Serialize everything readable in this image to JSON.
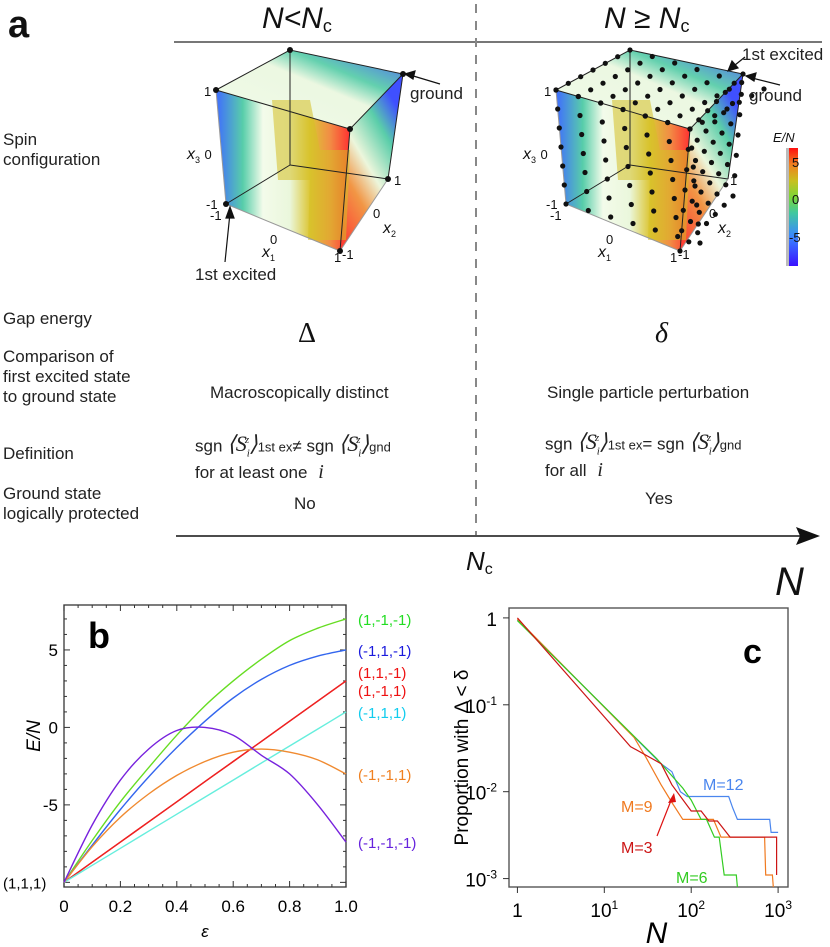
{
  "panel_a": {
    "letter": "a",
    "col_left_head": "N<N",
    "col_left_head_sub": "c",
    "col_right_head": "N ≥ N",
    "col_right_head_sub": "c",
    "rows": [
      {
        "label": "Spin\nconfiguration"
      },
      {
        "label": "Gap energy",
        "left": "Δ",
        "right": "δ"
      },
      {
        "label": "Comparison of\nfirst excited state\nto ground state",
        "left": "Macroscopically distinct",
        "right": "Single particle perturbation"
      },
      {
        "label": "Definition",
        "left_line1_pre": "sgn",
        "left_line1_sub1": "1st ex",
        "left_line1_op": "≠",
        "left_line1_sub2": "gnd",
        "left_line2": "for at least one",
        "right_line1_pre": "sgn",
        "right_line1_sub1": "1st ex",
        "right_line1_op": "=",
        "right_line1_sub2": "gnd",
        "right_line2": "for all",
        "index_symbol": "i"
      },
      {
        "label": "Ground state\nlogically protected",
        "left": "No",
        "right": "Yes"
      }
    ],
    "axis_label": "N",
    "axis_mark": "N",
    "axis_mark_sub": "c",
    "cube_left": {
      "annotations": [
        "ground",
        "1st excited"
      ],
      "axis_labels": {
        "x1": "x",
        "x2": "x",
        "x3": "x"
      },
      "axis_sub": {
        "x1": "1",
        "x2": "2",
        "x3": "3"
      },
      "ticks": [
        "1",
        "0",
        "-1",
        "-1",
        "0",
        "1",
        "-1",
        "0",
        "1"
      ]
    },
    "cube_right": {
      "annotations": [
        "1st excited",
        "ground"
      ],
      "axis_labels": {
        "x1": "x",
        "x2": "x",
        "x3": "x"
      },
      "axis_sub": {
        "x1": "1",
        "x2": "2",
        "x3": "3"
      },
      "ticks": [
        "1",
        "0",
        "-1",
        "-1",
        "0",
        "1",
        "-1",
        "0",
        "1"
      ]
    },
    "colorbar": {
      "title": "E/N",
      "ticks": [
        "5",
        "0",
        "-5"
      ],
      "range": [
        -9,
        7
      ],
      "colors": [
        "#0000ff",
        "#3a86ff",
        "#40c8a0",
        "#7ad63a",
        "#c8c020",
        "#f08020",
        "#ff1010"
      ]
    }
  },
  "chart_data": [
    {
      "panel": "b",
      "type": "line",
      "title": "",
      "xlabel": "ε",
      "ylabel": "E/N",
      "xlim": [
        0,
        1.0
      ],
      "ylim": [
        -10.3,
        7.9
      ],
      "xticks": [
        "0",
        "0.2",
        "0.4",
        "0.6",
        "0.8",
        "1.0"
      ],
      "xtick_values": [
        0,
        0.2,
        0.4,
        0.6,
        0.8,
        1.0
      ],
      "yticks": [
        "5",
        "0",
        "-5"
      ],
      "ytick_values": [
        5,
        0,
        -5
      ],
      "start_label": "(1,1,1)",
      "x": [
        0,
        0.1,
        0.2,
        0.3,
        0.4,
        0.5,
        0.6,
        0.7,
        0.8,
        0.9,
        1.0
      ],
      "series": [
        {
          "name": "(1,-1,-1)",
          "color": "#66dd22",
          "values": [
            -10,
            -7.3,
            -4.8,
            -2.6,
            -0.5,
            1.4,
            3.0,
            4.4,
            5.6,
            6.4,
            7.0
          ]
        },
        {
          "name": "(-1,1,-1)",
          "color": "#3366ee",
          "values": [
            -10,
            -7.6,
            -5.3,
            -3.2,
            -1.3,
            0.4,
            1.9,
            3.1,
            4.0,
            4.6,
            5.0
          ]
        },
        {
          "name": "(1,1,-1)",
          "color": "#ee2222",
          "values": [
            -10,
            -8.7,
            -7.4,
            -6.1,
            -4.8,
            -3.5,
            -2.2,
            -0.9,
            0.4,
            1.7,
            3.0
          ]
        },
        {
          "name": "(1,-1,1)",
          "color": "#ee2222",
          "values": [
            -10,
            -8.7,
            -7.4,
            -6.1,
            -4.8,
            -3.5,
            -2.2,
            -0.9,
            0.4,
            1.7,
            3.0
          ]
        },
        {
          "name": "(-1,1,1)",
          "color": "#66eedd",
          "values": [
            -10,
            -8.9,
            -7.8,
            -6.7,
            -5.6,
            -4.5,
            -3.4,
            -2.3,
            -1.2,
            -0.1,
            1.0
          ]
        },
        {
          "name": "(-1,-1,1)",
          "color": "#f08a30",
          "values": [
            -10,
            -7.7,
            -5.8,
            -4.3,
            -3.1,
            -2.2,
            -1.6,
            -1.4,
            -1.6,
            -2.1,
            -3.0
          ]
        },
        {
          "name": "(-1,-1,-1)",
          "color": "#7722dd",
          "values": [
            -10,
            -6.3,
            -3.4,
            -1.4,
            -0.2,
            0.0,
            -0.5,
            -1.8,
            -3.0,
            -5.0,
            -7.4
          ]
        }
      ],
      "legend_placement": "right",
      "legend_colors": [
        "#22dd22",
        "#1a1add",
        "#ee1111",
        "#ee1111",
        "#11ccee",
        "#f08020",
        "#6622dd"
      ]
    },
    {
      "panel": "c",
      "type": "line",
      "title": "",
      "xlabel": "N",
      "ylabel": "Proportion with Δ < δ",
      "xscale": "log",
      "yscale": "log",
      "xlim": [
        0.8,
        1300
      ],
      "ylim": [
        0.0008,
        1.3
      ],
      "xticks": [
        "1",
        "10",
        "10",
        "10"
      ],
      "xtick_exp": [
        "",
        "1",
        "2",
        "3"
      ],
      "xtick_values": [
        1,
        10,
        100,
        1000
      ],
      "yticks": [
        "1",
        "10",
        "10",
        "10"
      ],
      "ytick_exp": [
        "",
        "-1",
        "-2",
        "-3"
      ],
      "ytick_values": [
        1,
        0.1,
        0.01,
        0.001
      ],
      "series": [
        {
          "name": "M=12",
          "color": "#4a86ee",
          "points": [
            [
              1,
              0.95
            ],
            [
              20,
              0.047
            ],
            [
              45,
              0.021
            ],
            [
              60,
              0.017
            ],
            [
              75,
              0.01
            ],
            [
              90,
              0.0088
            ],
            [
              270,
              0.0088
            ],
            [
              300,
              0.0065
            ],
            [
              340,
              0.0048
            ],
            [
              800,
              0.0048
            ],
            [
              830,
              0.0034
            ],
            [
              1000,
              0.0034
            ]
          ]
        },
        {
          "name": "M=9",
          "color": "#f07a20",
          "points": [
            [
              1,
              0.97
            ],
            [
              22,
              0.042
            ],
            [
              30,
              0.025
            ],
            [
              45,
              0.012
            ],
            [
              60,
              0.0075
            ],
            [
              80,
              0.0048
            ],
            [
              180,
              0.0048
            ],
            [
              220,
              0.003
            ],
            [
              700,
              0.003
            ],
            [
              720,
              0.0011
            ],
            [
              860,
              0.0011
            ],
            [
              880,
              0.0008
            ]
          ]
        },
        {
          "name": "M=6",
          "color": "#33cc22",
          "points": [
            [
              1,
              0.93
            ],
            [
              40,
              0.024
            ],
            [
              80,
              0.011
            ],
            [
              100,
              0.008
            ],
            [
              130,
              0.0048
            ],
            [
              150,
              0.0048
            ],
            [
              185,
              0.003
            ],
            [
              210,
              0.003
            ],
            [
              240,
              0.0011
            ],
            [
              330,
              0.0011
            ],
            [
              340,
              0.0008
            ]
          ]
        },
        {
          "name": "M=3",
          "color": "#cc1515",
          "points": [
            [
              1,
              1.0
            ],
            [
              20,
              0.033
            ],
            [
              45,
              0.021
            ],
            [
              60,
              0.012
            ],
            [
              100,
              0.006
            ],
            [
              130,
              0.006
            ],
            [
              160,
              0.0046
            ],
            [
              200,
              0.0046
            ],
            [
              280,
              0.003
            ],
            [
              960,
              0.003
            ],
            [
              960,
              0.0011
            ]
          ]
        }
      ],
      "annotations": [
        {
          "text": "M=12",
          "color": "#4a86ee"
        },
        {
          "text": "M=9",
          "color": "#f07a20"
        },
        {
          "text": "M=3",
          "color": "#cc1515"
        },
        {
          "text": "M=6",
          "color": "#33cc22"
        }
      ]
    }
  ],
  "panel_b_letter": "b",
  "panel_c_letter": "c"
}
